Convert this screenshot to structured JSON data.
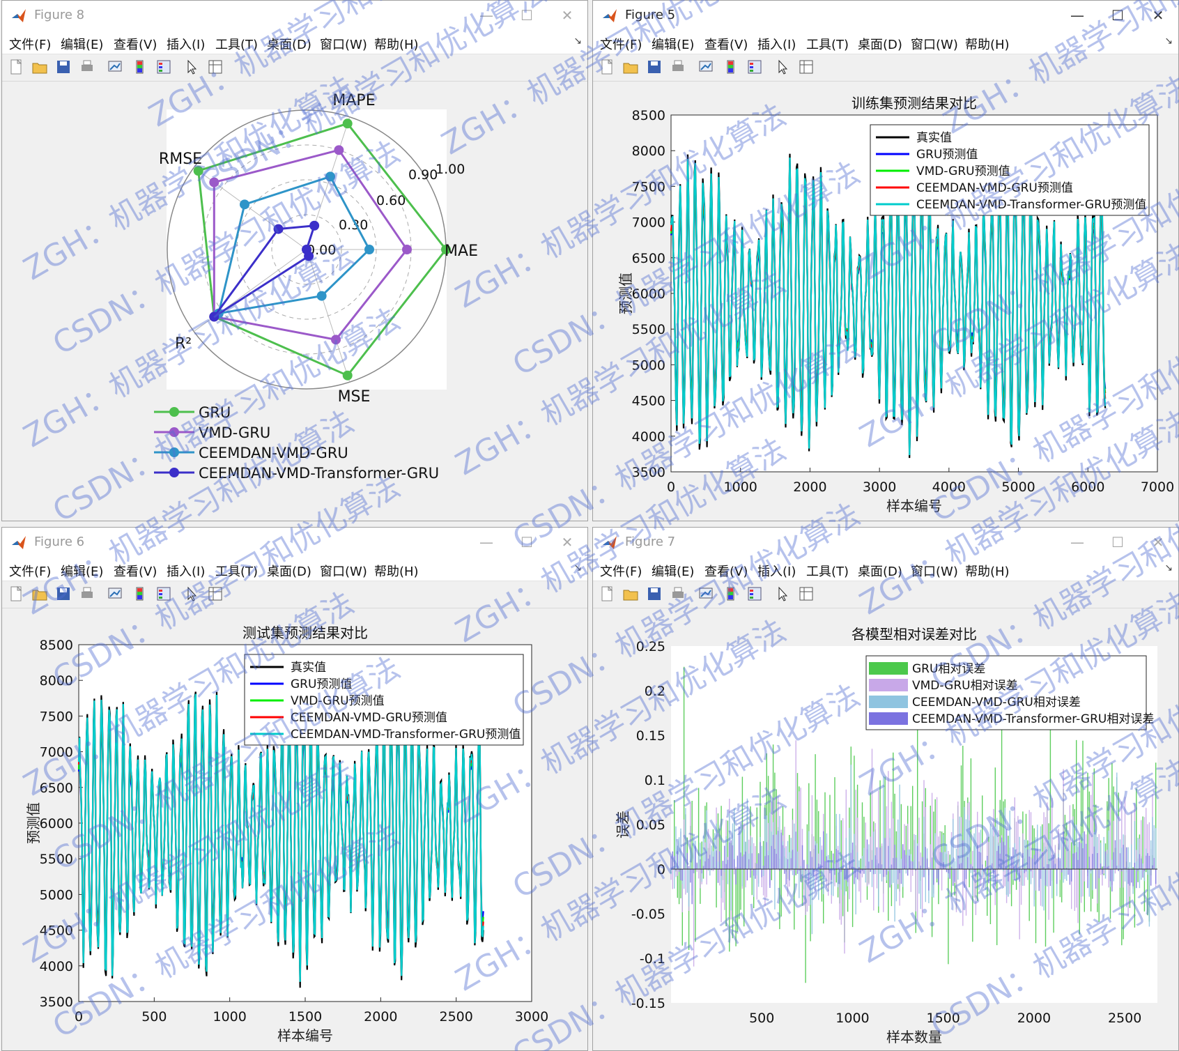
{
  "menu": [
    "文件(F)",
    "编辑(E)",
    "查看(V)",
    "插入(I)",
    "工具(T)",
    "桌面(D)",
    "窗口(W)",
    "帮助(H)"
  ],
  "toolbar_icons": [
    "new-file-icon",
    "open-folder-icon",
    "save-icon",
    "print-icon",
    "link-figure-icon",
    "colorbar-icon",
    "legend-icon",
    "pointer-icon",
    "property-editor-icon"
  ],
  "windows": {
    "fig8": {
      "title": "Figure 8"
    },
    "fig5": {
      "title": "Figure 5"
    },
    "fig6": {
      "title": "Figure 6"
    },
    "fig7": {
      "title": "Figure 7"
    }
  },
  "watermark": {
    "line1": "ZGH：机器学习和优化算法",
    "line2": "CSDN：机器学习和优化算法"
  },
  "chart_data": [
    {
      "type": "radar",
      "axes": [
        "MAPE",
        "MAE",
        "MSE",
        "R²",
        "RMSE"
      ],
      "ticks": [
        "0.00",
        "0.30",
        "0.60",
        "0.90",
        "1.00"
      ],
      "rlim": [
        0,
        1
      ],
      "series": [
        {
          "name": "GRU",
          "color": "#4dbf4d",
          "values": [
            0.95,
            1.0,
            0.95,
            0.82,
            0.96
          ]
        },
        {
          "name": "VMD-GRU",
          "color": "#9b59c9",
          "values": [
            0.75,
            0.72,
            0.68,
            0.82,
            0.82
          ]
        },
        {
          "name": "CEEMDAN-VMD-GRU",
          "color": "#2e94c8",
          "values": [
            0.55,
            0.45,
            0.35,
            0.78,
            0.55
          ]
        },
        {
          "name": "CEEMDAN-VMD-Transformer-GRU",
          "color": "#3b2fc9",
          "values": [
            0.18,
            0.0,
            0.05,
            0.82,
            0.25
          ]
        }
      ],
      "legend": "bottom"
    },
    {
      "type": "line",
      "title": "训练集预测结果对比",
      "xlabel": "样本编号",
      "ylabel": "预测值",
      "xlim": [
        0,
        7000
      ],
      "ylim": [
        3500,
        8500
      ],
      "xticks": [
        "0",
        "1000",
        "2000",
        "3000",
        "4000",
        "5000",
        "6000",
        "7000"
      ],
      "yticks": [
        "3500",
        "4000",
        "4500",
        "5000",
        "5500",
        "6000",
        "6500",
        "7000",
        "7500",
        "8000",
        "8500"
      ],
      "n_samples": 6250,
      "series": [
        {
          "name": "真实值",
          "color": "#000000"
        },
        {
          "name": "GRU预测值",
          "color": "#0000ff"
        },
        {
          "name": "VMD-GRU预测值",
          "color": "#00ee00"
        },
        {
          "name": "CEEMDAN-VMD-GRU预测值",
          "color": "#ff0000"
        },
        {
          "name": "CEEMDAN-VMD-Transformer-GRU预测值",
          "color": "#00cccc"
        }
      ],
      "legend": "top-right"
    },
    {
      "type": "line",
      "title": "测试集预测结果对比",
      "xlabel": "样本编号",
      "ylabel": "预测值",
      "xlim": [
        0,
        3000
      ],
      "ylim": [
        3500,
        8500
      ],
      "xticks": [
        "0",
        "500",
        "1000",
        "1500",
        "2000",
        "2500",
        "3000"
      ],
      "yticks": [
        "3500",
        "4000",
        "4500",
        "5000",
        "5500",
        "6000",
        "6500",
        "7000",
        "7500",
        "8000",
        "8500"
      ],
      "n_samples": 2680,
      "series": [
        {
          "name": "真实值",
          "color": "#000000"
        },
        {
          "name": "GRU预测值",
          "color": "#0000ff"
        },
        {
          "name": "VMD-GRU预测值",
          "color": "#00ee00"
        },
        {
          "name": "CEEMDAN-VMD-GRU预测值",
          "color": "#ff0000"
        },
        {
          "name": "CEEMDAN-VMD-Transformer-GRU预测值",
          "color": "#00cccc"
        }
      ],
      "legend": "top-right"
    },
    {
      "type": "bar",
      "title": "各模型相对误差对比",
      "xlabel": "样本数量",
      "ylabel": "误差",
      "xlim": [
        0,
        2680
      ],
      "ylim": [
        -0.15,
        0.25
      ],
      "xticks": [
        "500",
        "1000",
        "1500",
        "2000",
        "2500"
      ],
      "yticks": [
        "-0.15",
        "-0.1",
        "-0.05",
        "0",
        "0.05",
        "0.1",
        "0.15",
        "0.2",
        "0.25"
      ],
      "series": [
        {
          "name": "GRU相对误差",
          "color": "#4cc94c"
        },
        {
          "name": "VMD-GRU相对误差",
          "color": "#c8a8e8"
        },
        {
          "name": "CEEMDAN-VMD-GRU相对误差",
          "color": "#8fc4e0"
        },
        {
          "name": "CEEMDAN-VMD-Transformer-GRU相对误差",
          "color": "#7b72e0"
        }
      ],
      "legend": "top-right"
    }
  ]
}
